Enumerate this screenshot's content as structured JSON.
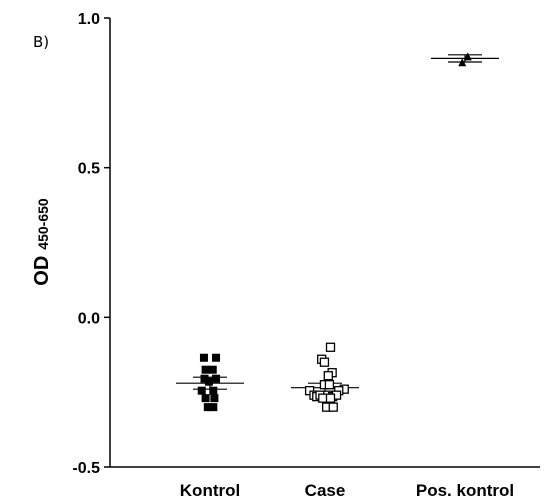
{
  "panel_label": "B)",
  "chart_data": {
    "type": "scatter",
    "ylabel": "OD",
    "ylabel_subscript": "450-650",
    "ylim": [
      -0.5,
      1.0
    ],
    "yticks": [
      {
        "value": 1.0,
        "label": "1.0"
      },
      {
        "value": 0.5,
        "label": "0.5"
      },
      {
        "value": 0.0,
        "label": "0.0"
      },
      {
        "value": -0.5,
        "label": "-0.5"
      }
    ],
    "categories": [
      "Kontrol",
      "Case",
      "Pos. kontrol"
    ],
    "grid": false,
    "series": [
      {
        "category": "Kontrol",
        "marker": "filled-square",
        "mean": -0.22,
        "sem": 0.02,
        "points": [
          {
            "dx": -0.11,
            "y": -0.135
          },
          {
            "dx": 0.11,
            "y": -0.135
          },
          {
            "dx": -0.08,
            "y": -0.175
          },
          {
            "dx": 0.05,
            "y": -0.175
          },
          {
            "dx": -0.1,
            "y": -0.205
          },
          {
            "dx": 0.11,
            "y": -0.205
          },
          {
            "dx": -0.02,
            "y": -0.215
          },
          {
            "dx": 0.06,
            "y": -0.245
          },
          {
            "dx": -0.15,
            "y": -0.245
          },
          {
            "dx": -0.08,
            "y": -0.27
          },
          {
            "dx": 0.08,
            "y": -0.27
          },
          {
            "dx": -0.04,
            "y": -0.3
          },
          {
            "dx": 0.06,
            "y": -0.3
          }
        ]
      },
      {
        "category": "Case",
        "marker": "open-square",
        "mean": -0.235,
        "sem": 0.015,
        "points": [
          {
            "dx": 0.1,
            "y": -0.1
          },
          {
            "dx": -0.06,
            "y": -0.14
          },
          {
            "dx": -0.01,
            "y": -0.15
          },
          {
            "dx": 0.13,
            "y": -0.185
          },
          {
            "dx": 0.06,
            "y": -0.195
          },
          {
            "dx": -0.01,
            "y": -0.225
          },
          {
            "dx": 0.08,
            "y": -0.225
          },
          {
            "dx": -0.28,
            "y": -0.245
          },
          {
            "dx": 0.35,
            "y": -0.24
          },
          {
            "dx": 0.25,
            "y": -0.245
          },
          {
            "dx": -0.2,
            "y": -0.26
          },
          {
            "dx": -0.15,
            "y": -0.265
          },
          {
            "dx": -0.09,
            "y": -0.26
          },
          {
            "dx": 0.05,
            "y": -0.26
          },
          {
            "dx": 0.14,
            "y": -0.265
          },
          {
            "dx": 0.21,
            "y": -0.26
          },
          {
            "dx": -0.04,
            "y": -0.27
          },
          {
            "dx": 0.1,
            "y": -0.27
          },
          {
            "dx": 0.03,
            "y": -0.3
          },
          {
            "dx": 0.15,
            "y": -0.3
          }
        ]
      },
      {
        "category": "Pos. kontrol",
        "marker": "filled-triangle",
        "mean": 0.865,
        "sem": 0.012,
        "points": [
          {
            "dx": -0.05,
            "y": 0.852
          },
          {
            "dx": 0.05,
            "y": 0.872
          }
        ]
      }
    ]
  }
}
